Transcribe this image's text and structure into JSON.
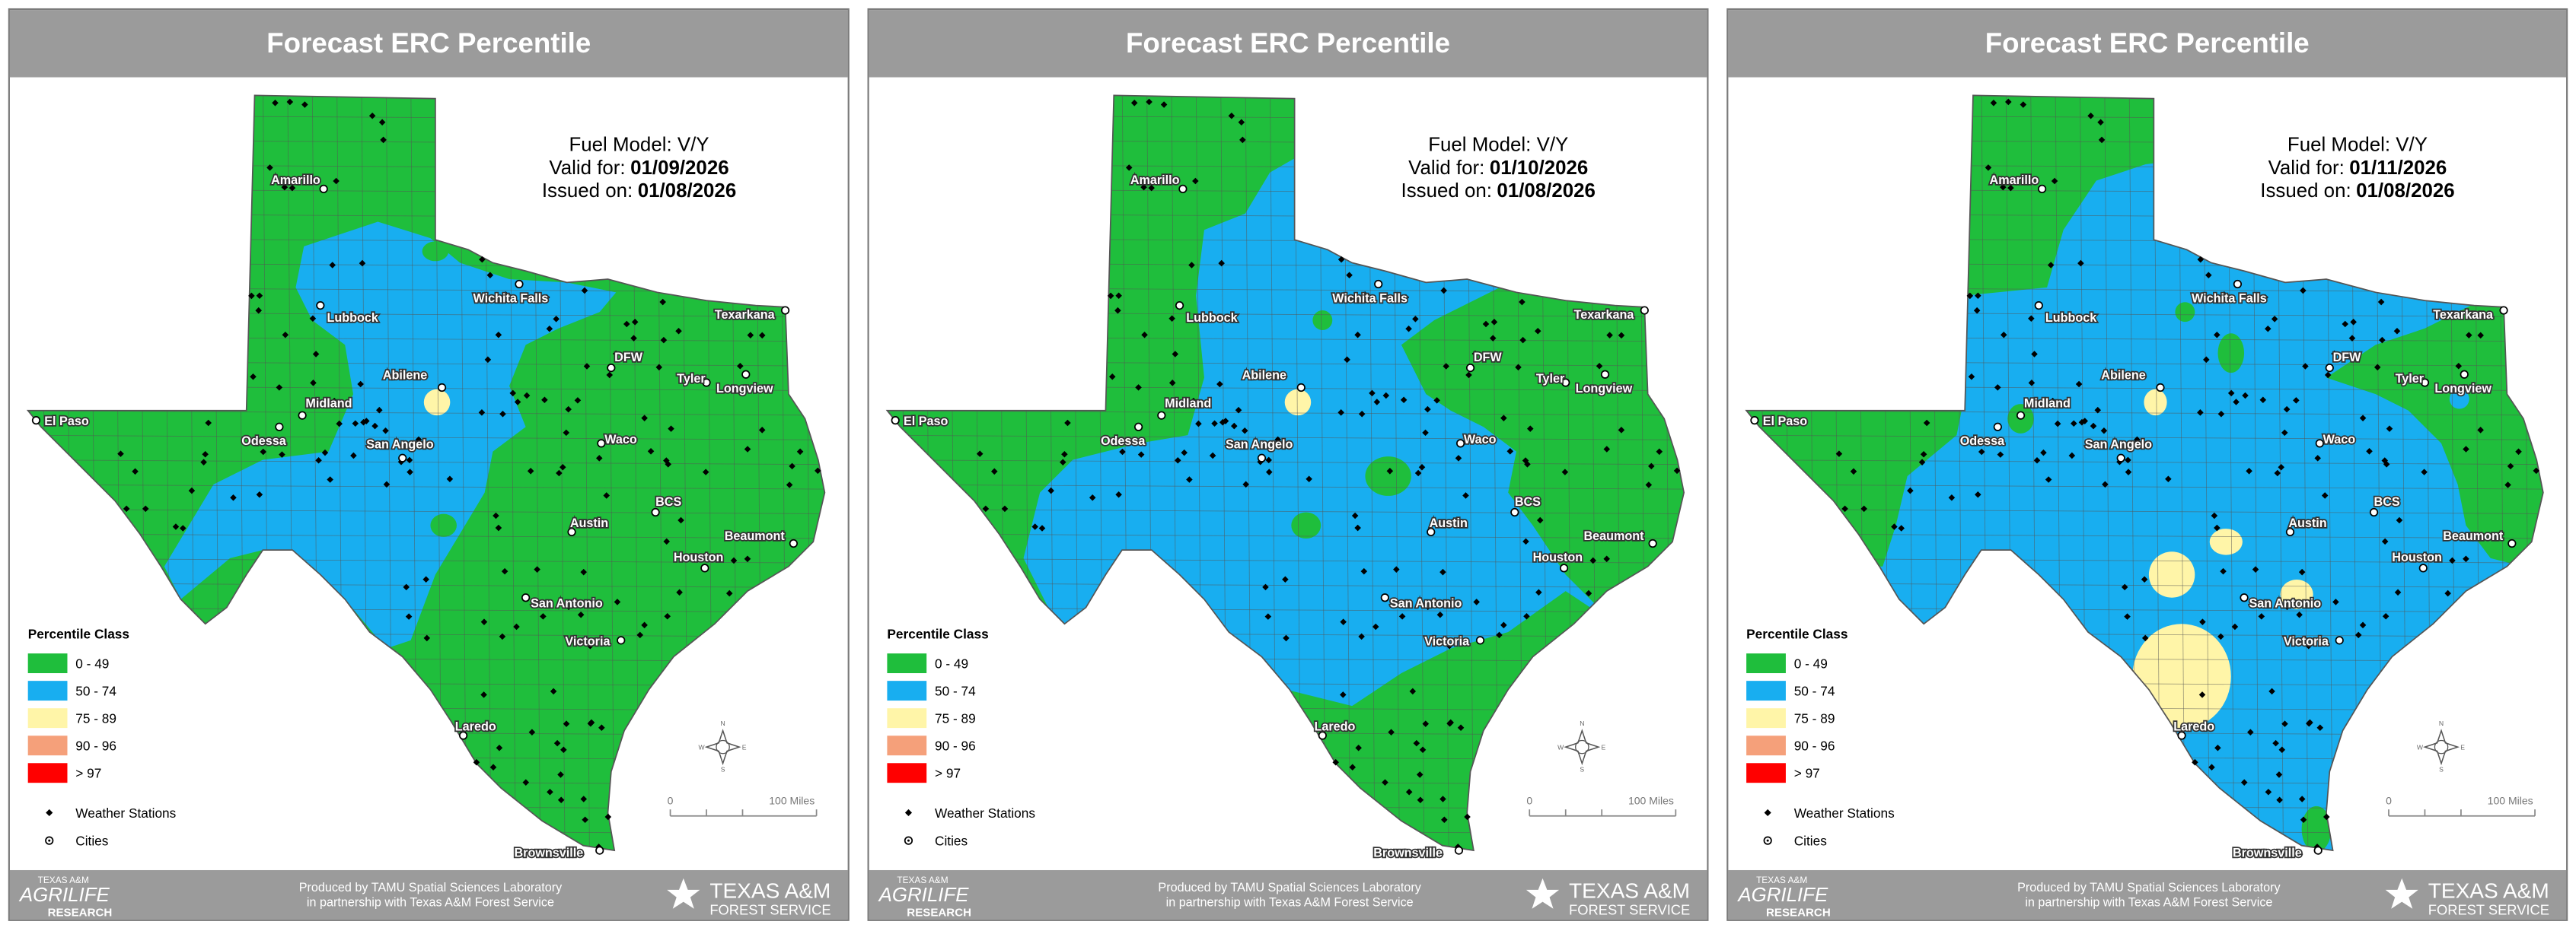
{
  "panels": [
    {
      "title": "Forecast ERC Percentile",
      "fuel_model": "Fuel Model: V/Y",
      "valid_label": "Valid for:",
      "valid_date": "01/09/2026",
      "issued_label": "Issued on:",
      "issued_date": "01/08/2026"
    },
    {
      "title": "Forecast ERC Percentile",
      "fuel_model": "Fuel Model: V/Y",
      "valid_label": "Valid for:",
      "valid_date": "01/10/2026",
      "issued_label": "Issued on:",
      "issued_date": "01/08/2026"
    },
    {
      "title": "Forecast ERC Percentile",
      "fuel_model": "Fuel Model: V/Y",
      "valid_label": "Valid for:",
      "valid_date": "01/11/2026",
      "issued_label": "Issued on:",
      "issued_date": "01/08/2026"
    }
  ],
  "legend": {
    "title": "Percentile Class",
    "classes": [
      {
        "label": "0 - 49",
        "color": "#1fbe3c"
      },
      {
        "label": "50 - 74",
        "color": "#18aef0"
      },
      {
        "label": "75 - 89",
        "color": "#fff5a8"
      },
      {
        "label": "90 - 96",
        "color": "#f5a07a"
      },
      {
        "label": "> 97",
        "color": "#ff0000"
      }
    ],
    "stations": "Weather Stations",
    "cities": "Cities"
  },
  "scale": {
    "start": "0",
    "end": "100 Miles"
  },
  "compass": [
    "N",
    "E",
    "S",
    "W"
  ],
  "cities": [
    "Amarillo",
    "Lubbock",
    "Wichita Falls",
    "Texarkana",
    "DFW",
    "Tyler",
    "Longview",
    "Abilene",
    "Midland",
    "El Paso",
    "Odessa",
    "San Angelo",
    "Waco",
    "BCS",
    "Austin",
    "Beaumont",
    "Houston",
    "San Antonio",
    "Victoria",
    "Laredo",
    "Brownsville"
  ],
  "footer": {
    "line1": "Produced by TAMU Spatial Sciences Laboratory",
    "line2": "in partnership with Texas A&M Forest Service",
    "left_logo": [
      "TEXAS A&M",
      "AGRILIFE",
      "RESEARCH"
    ],
    "right_logo": [
      "TEXAS A&M",
      "FOREST SERVICE"
    ]
  }
}
